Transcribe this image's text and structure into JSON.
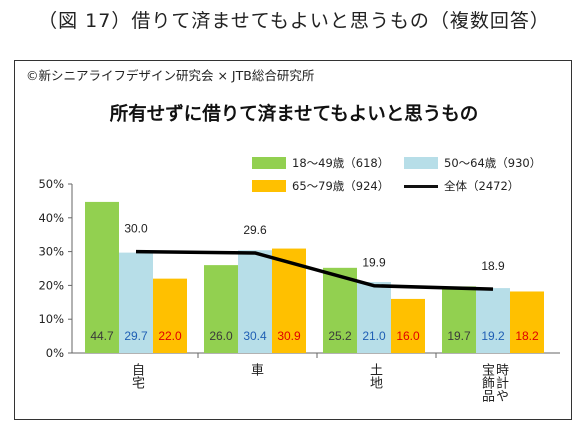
{
  "figure_heading": "（図 17）借りて済ませてもよいと思うもの（複数回答）",
  "credit": "©新シニアライフデザイン研究会 × JTB総合研究所",
  "chart_data": {
    "type": "bar",
    "title": "所有せずに借りて済ませてもよいと思うもの",
    "categories": [
      "自宅",
      "車",
      "土地",
      "宝飾品・時計や"
    ],
    "category_lines": [
      [
        "自宅"
      ],
      [
        "車"
      ],
      [
        "土地"
      ],
      [
        "時計や",
        "宝飾品"
      ]
    ],
    "ylim": [
      0,
      50
    ],
    "yticks": [
      "0%",
      "10%",
      "20%",
      "30%",
      "40%",
      "50%"
    ],
    "series": [
      {
        "name": "18～49歳（618）",
        "type": "bar",
        "color": "#92D050",
        "label_color": "#3a3a3a",
        "values": [
          44.7,
          26.0,
          25.2,
          19.7
        ]
      },
      {
        "name": "50～64歳（930）",
        "type": "bar",
        "color": "#B7DEE8",
        "label_color": "#1F5FB4",
        "values": [
          29.7,
          30.4,
          21.0,
          19.2
        ]
      },
      {
        "name": "65～79歳（924）",
        "type": "bar",
        "color": "#FFC000",
        "label_color": "#E00000",
        "values": [
          22.0,
          30.9,
          16.0,
          18.2
        ]
      },
      {
        "name": "全体（2472）",
        "type": "line",
        "color": "#000000",
        "values": [
          30.0,
          29.6,
          19.9,
          18.9
        ]
      }
    ],
    "total_labels": [
      "30.0",
      "29.6",
      "19.9",
      "18.9"
    ],
    "grid": false,
    "legend": "top"
  }
}
